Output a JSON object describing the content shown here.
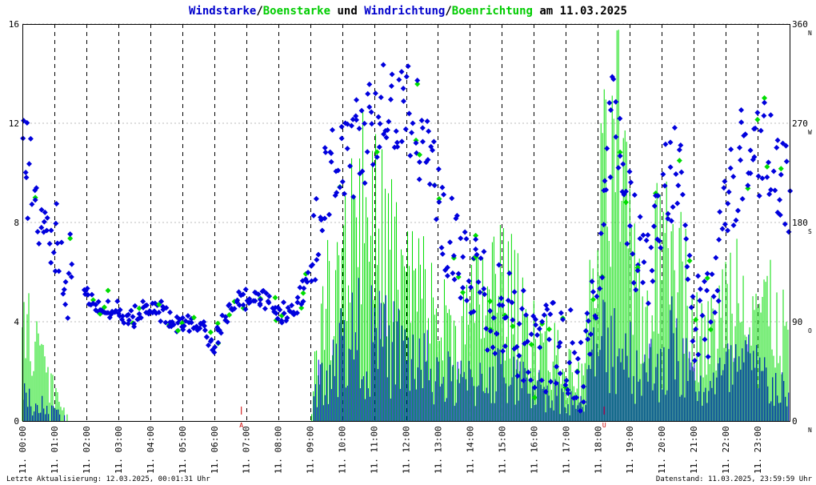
{
  "chart_data": {
    "type": "scatter",
    "title_parts": [
      {
        "text": "Windstarke",
        "color": "#0000cc"
      },
      {
        "text": "/",
        "color": "#000000"
      },
      {
        "text": "Boenstarke",
        "color": "#00cc00"
      },
      {
        "text": " und ",
        "color": "#000000"
      },
      {
        "text": "Windrichtung",
        "color": "#0000cc"
      },
      {
        "text": "/",
        "color": "#000000"
      },
      {
        "text": "Boenrichtung",
        "color": "#00cc00"
      },
      {
        "text": " am 11.03.2025",
        "color": "#000000"
      }
    ],
    "y_left": {
      "min": 0,
      "max": 16,
      "ticks": [
        "0",
        "4",
        "8",
        "12",
        "16"
      ]
    },
    "y_right": {
      "min": 0,
      "max": 360,
      "ticks": [
        "0",
        "90",
        "180",
        "270",
        "360"
      ],
      "compass": [
        "N",
        "O",
        "S",
        "W",
        "N"
      ]
    },
    "x_ticks": [
      "11. 00:00",
      "11. 01:00",
      "11. 02:00",
      "11. 03:00",
      "11. 04:00",
      "11. 05:00",
      "11. 06:00",
      "11. 07:00",
      "11. 08:00",
      "11. 09:00",
      "11. 10:00",
      "11. 11:00",
      "11. 12:00",
      "11. 13:00",
      "11. 14:00",
      "11. 15:00",
      "11. 16:00",
      "11. 17:00",
      "11. 18:00",
      "11. 19:00",
      "11. 20:00",
      "11. 21:00",
      "11. 22:00",
      "11. 23:00"
    ],
    "x_range_hours": [
      0,
      24
    ],
    "markers": [
      {
        "label": "A",
        "hour": 6.85
      },
      {
        "label": "U",
        "hour": 18.2
      }
    ],
    "colors": {
      "wind": "#0000dd",
      "gust": "#00dd00",
      "marker": "#cc0000",
      "grid": "#000000",
      "hgrid": "#bbbbbb"
    },
    "speed_profile": [
      {
        "h": 0.0,
        "wind": 1.2,
        "gust": 4.8
      },
      {
        "h": 0.5,
        "wind": 1.0,
        "gust": 3.5
      },
      {
        "h": 1.0,
        "wind": 0.5,
        "gust": 1.5
      },
      {
        "h": 1.5,
        "wind": 0.0,
        "gust": 0.0
      },
      {
        "h": 9.0,
        "wind": 0.0,
        "gust": 0.0
      },
      {
        "h": 9.2,
        "wind": 1.8,
        "gust": 3.0
      },
      {
        "h": 9.6,
        "wind": 3.2,
        "gust": 6.5
      },
      {
        "h": 10.0,
        "wind": 4.0,
        "gust": 9.0
      },
      {
        "h": 10.5,
        "wind": 4.5,
        "gust": 11.5
      },
      {
        "h": 11.0,
        "wind": 4.2,
        "gust": 9.5
      },
      {
        "h": 11.5,
        "wind": 4.0,
        "gust": 8.5
      },
      {
        "h": 12.0,
        "wind": 3.5,
        "gust": 7.0
      },
      {
        "h": 12.5,
        "wind": 3.0,
        "gust": 6.5
      },
      {
        "h": 13.0,
        "wind": 2.5,
        "gust": 5.0
      },
      {
        "h": 13.5,
        "wind": 2.0,
        "gust": 4.5
      },
      {
        "h": 14.0,
        "wind": 2.0,
        "gust": 5.0
      },
      {
        "h": 14.5,
        "wind": 2.5,
        "gust": 6.5
      },
      {
        "h": 15.0,
        "wind": 2.5,
        "gust": 7.0
      },
      {
        "h": 15.5,
        "wind": 2.0,
        "gust": 5.5
      },
      {
        "h": 16.0,
        "wind": 1.8,
        "gust": 4.5
      },
      {
        "h": 16.5,
        "wind": 1.5,
        "gust": 3.5
      },
      {
        "h": 17.0,
        "wind": 1.2,
        "gust": 2.5
      },
      {
        "h": 17.5,
        "wind": 0.8,
        "gust": 2.0
      },
      {
        "h": 17.9,
        "wind": 3.5,
        "gust": 7.5
      },
      {
        "h": 18.3,
        "wind": 4.5,
        "gust": 12.0
      },
      {
        "h": 18.7,
        "wind": 4.2,
        "gust": 13.5
      },
      {
        "h": 19.0,
        "wind": 3.5,
        "gust": 7.5
      },
      {
        "h": 19.5,
        "wind": 2.5,
        "gust": 5.0
      },
      {
        "h": 20.0,
        "wind": 3.5,
        "gust": 9.0
      },
      {
        "h": 20.3,
        "wind": 4.0,
        "gust": 12.0
      },
      {
        "h": 20.7,
        "wind": 3.0,
        "gust": 7.0
      },
      {
        "h": 21.0,
        "wind": 2.0,
        "gust": 4.5
      },
      {
        "h": 21.5,
        "wind": 1.8,
        "gust": 4.0
      },
      {
        "h": 22.0,
        "wind": 2.5,
        "gust": 6.0
      },
      {
        "h": 22.5,
        "wind": 3.0,
        "gust": 7.5
      },
      {
        "h": 23.0,
        "wind": 2.5,
        "gust": 6.0
      },
      {
        "h": 23.5,
        "wind": 2.0,
        "gust": 5.0
      },
      {
        "h": 24.0,
        "wind": 1.5,
        "gust": 4.0
      }
    ],
    "direction_profile": [
      {
        "h": 0.0,
        "deg": 230
      },
      {
        "h": 0.4,
        "deg": 220
      },
      {
        "h": 0.8,
        "deg": 170
      },
      {
        "h": 1.2,
        "deg": 145
      },
      {
        "h": 1.6,
        "deg": 130
      },
      {
        "h": 2.0,
        "deg": 115
      },
      {
        "h": 2.5,
        "deg": 102
      },
      {
        "h": 3.0,
        "deg": 100
      },
      {
        "h": 3.5,
        "deg": 95
      },
      {
        "h": 4.0,
        "deg": 108
      },
      {
        "h": 4.5,
        "deg": 95
      },
      {
        "h": 5.0,
        "deg": 88
      },
      {
        "h": 5.5,
        "deg": 90
      },
      {
        "h": 6.0,
        "deg": 72
      },
      {
        "h": 6.6,
        "deg": 105
      },
      {
        "h": 7.0,
        "deg": 112
      },
      {
        "h": 7.5,
        "deg": 110
      },
      {
        "h": 8.0,
        "deg": 100
      },
      {
        "h": 8.5,
        "deg": 95
      },
      {
        "h": 9.0,
        "deg": 140
      },
      {
        "h": 9.5,
        "deg": 210
      },
      {
        "h": 10.0,
        "deg": 235
      },
      {
        "h": 10.5,
        "deg": 250
      },
      {
        "h": 11.0,
        "deg": 275
      },
      {
        "h": 11.5,
        "deg": 290
      },
      {
        "h": 12.0,
        "deg": 285
      },
      {
        "h": 12.5,
        "deg": 260
      },
      {
        "h": 13.0,
        "deg": 200
      },
      {
        "h": 13.5,
        "deg": 160
      },
      {
        "h": 14.0,
        "deg": 130
      },
      {
        "h": 14.5,
        "deg": 110
      },
      {
        "h": 15.0,
        "deg": 95
      },
      {
        "h": 15.5,
        "deg": 85
      },
      {
        "h": 16.0,
        "deg": 75
      },
      {
        "h": 16.5,
        "deg": 70
      },
      {
        "h": 17.0,
        "deg": 60
      },
      {
        "h": 17.5,
        "deg": 50
      },
      {
        "h": 18.0,
        "deg": 120
      },
      {
        "h": 18.5,
        "deg": 300
      },
      {
        "h": 19.0,
        "deg": 180
      },
      {
        "h": 19.5,
        "deg": 130
      },
      {
        "h": 20.0,
        "deg": 200
      },
      {
        "h": 20.5,
        "deg": 240
      },
      {
        "h": 21.0,
        "deg": 90
      },
      {
        "h": 21.5,
        "deg": 100
      },
      {
        "h": 22.0,
        "deg": 200
      },
      {
        "h": 22.5,
        "deg": 240
      },
      {
        "h": 23.0,
        "deg": 250
      },
      {
        "h": 23.5,
        "deg": 240
      },
      {
        "h": 24.0,
        "deg": 200
      }
    ]
  },
  "footer": {
    "left": "Letzte Aktualisierung: 12.03.2025, 00:01:31 Uhr",
    "right": "Datenstand: 11.03.2025, 23:59:59 Uhr"
  }
}
